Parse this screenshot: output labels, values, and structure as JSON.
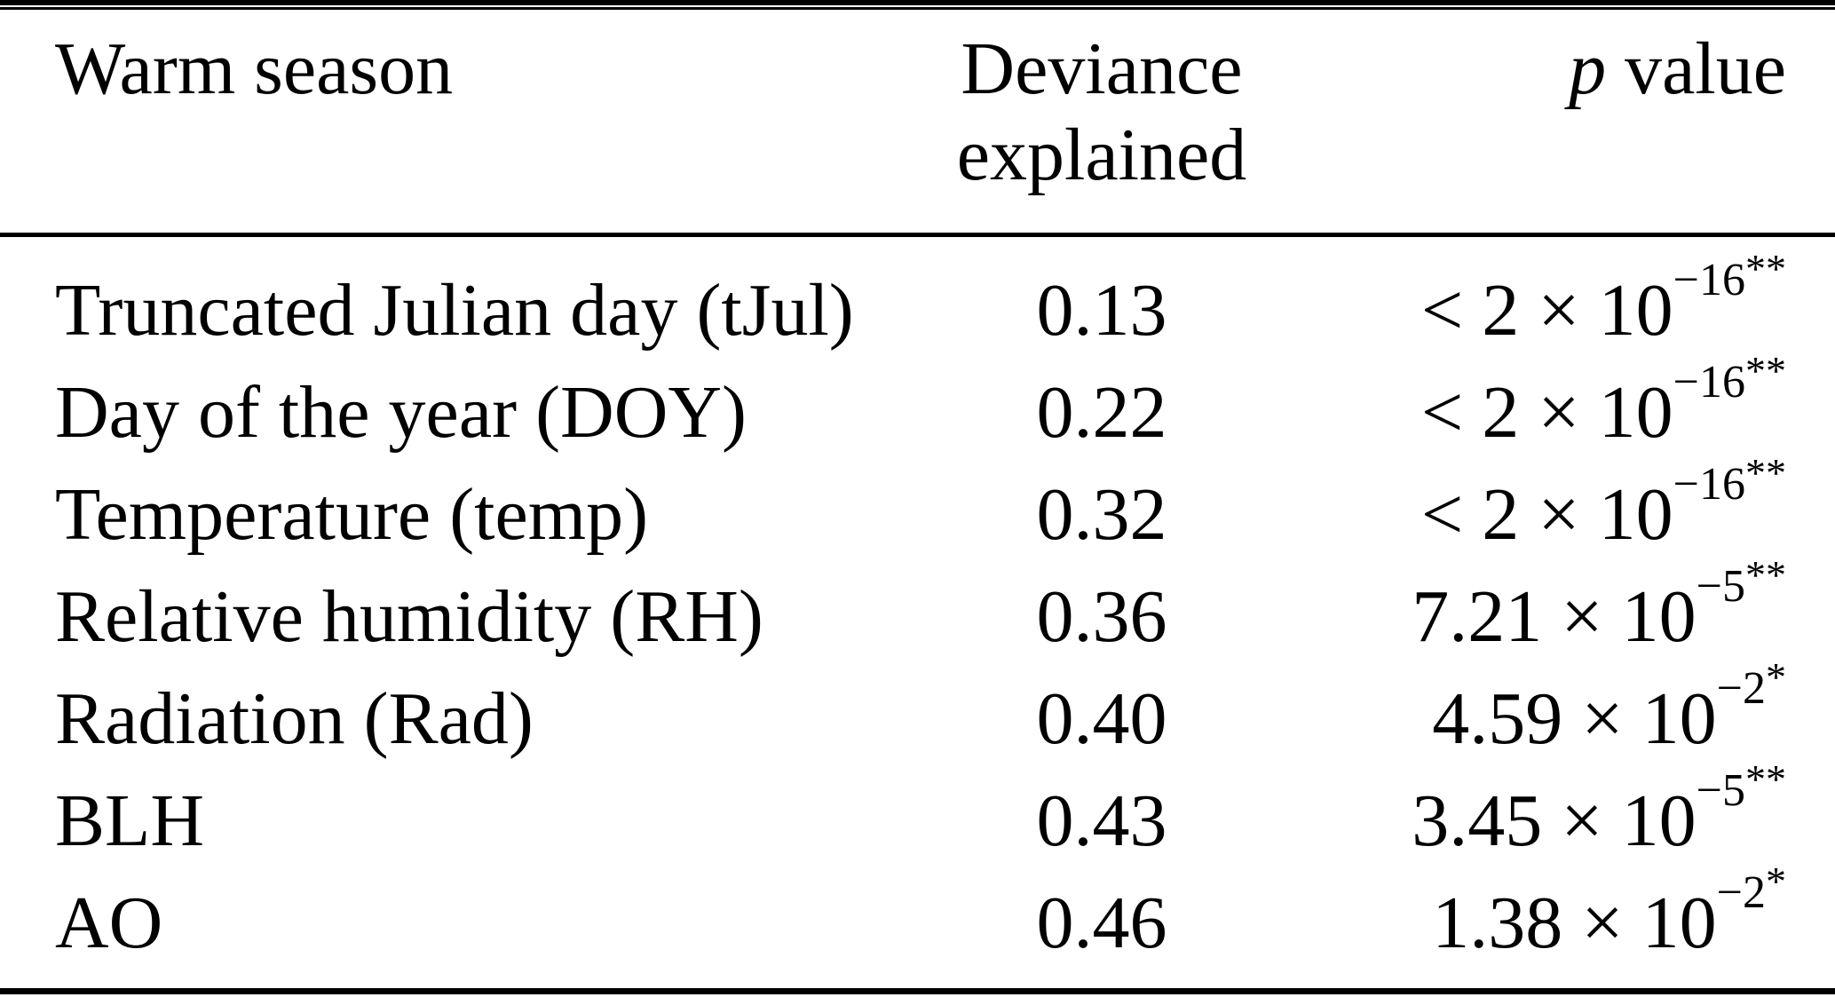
{
  "table": {
    "columns": [
      "Warm season",
      "Deviance explained",
      "p value"
    ],
    "p_header": {
      "italic": "p",
      "rest": " value"
    },
    "rows": [
      {
        "label": "Truncated Julian day (tJul)",
        "deviance": "0.13",
        "p_base": "< 2 × 10",
        "p_exponent": "−16",
        "p_stars": "**"
      },
      {
        "label": "Day of the year (DOY)",
        "deviance": "0.22",
        "p_base": "< 2 × 10",
        "p_exponent": "−16",
        "p_stars": "**"
      },
      {
        "label": "Temperature (temp)",
        "deviance": "0.32",
        "p_base": "< 2 × 10",
        "p_exponent": "−16",
        "p_stars": "**"
      },
      {
        "label": "Relative humidity (RH)",
        "deviance": "0.36",
        "p_base": "7.21 × 10",
        "p_exponent": "−5",
        "p_stars": "**"
      },
      {
        "label": "Radiation (Rad)",
        "deviance": "0.40",
        "p_base": "4.59 × 10",
        "p_exponent": "−2",
        "p_stars": "*"
      },
      {
        "label": "BLH",
        "deviance": "0.43",
        "p_base": "3.45 × 10",
        "p_exponent": "−5",
        "p_stars": "**"
      },
      {
        "label": "AO",
        "deviance": "0.46",
        "p_base": "1.38 × 10",
        "p_exponent": "−2",
        "p_stars": "*"
      }
    ],
    "text_color": "#000000",
    "background_color": "#ffffff"
  }
}
